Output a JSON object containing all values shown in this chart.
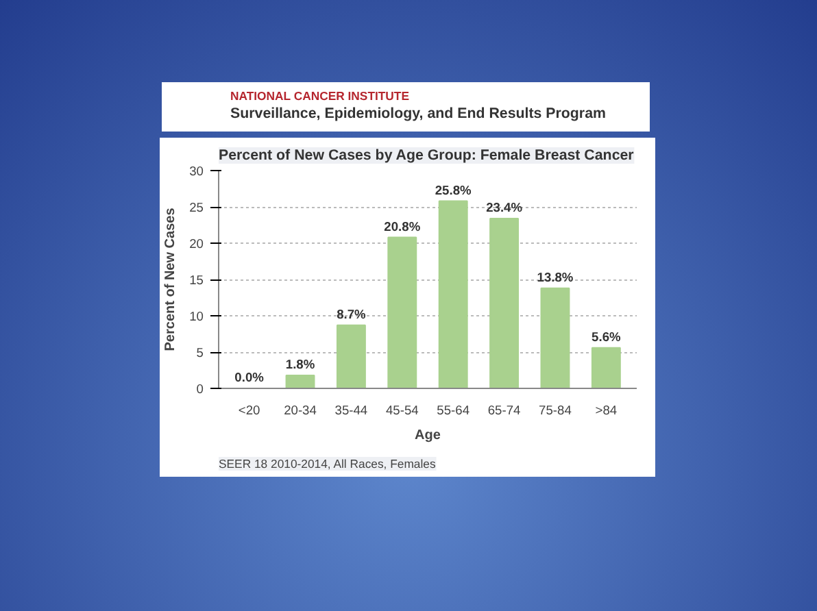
{
  "chart_data": {
    "type": "bar",
    "title": "Percent of New Cases by Age Group: Female Breast Cancer",
    "xlabel": "Age",
    "ylabel": "Percent of New Cases",
    "categories": [
      "<20",
      "20-34",
      "35-44",
      "45-54",
      "55-64",
      "65-74",
      "75-84",
      ">84"
    ],
    "values": [
      0.0,
      1.8,
      8.7,
      20.8,
      25.8,
      23.4,
      13.8,
      5.6
    ],
    "value_labels": [
      "0.0%",
      "1.8%",
      "8.7%",
      "20.8%",
      "25.8%",
      "23.4%",
      "13.8%",
      "5.6%"
    ],
    "color": "#a9d18e",
    "ylim": [
      0,
      30
    ],
    "yticks": [
      0,
      5,
      10,
      15,
      20,
      25,
      30
    ],
    "grid": "y",
    "annotations": [
      "NATIONAL CANCER INSTITUTE",
      "Surveillance, Epidemiology, and End Results Program",
      "SEER 18 2010-2014, All Races, Females"
    ]
  }
}
